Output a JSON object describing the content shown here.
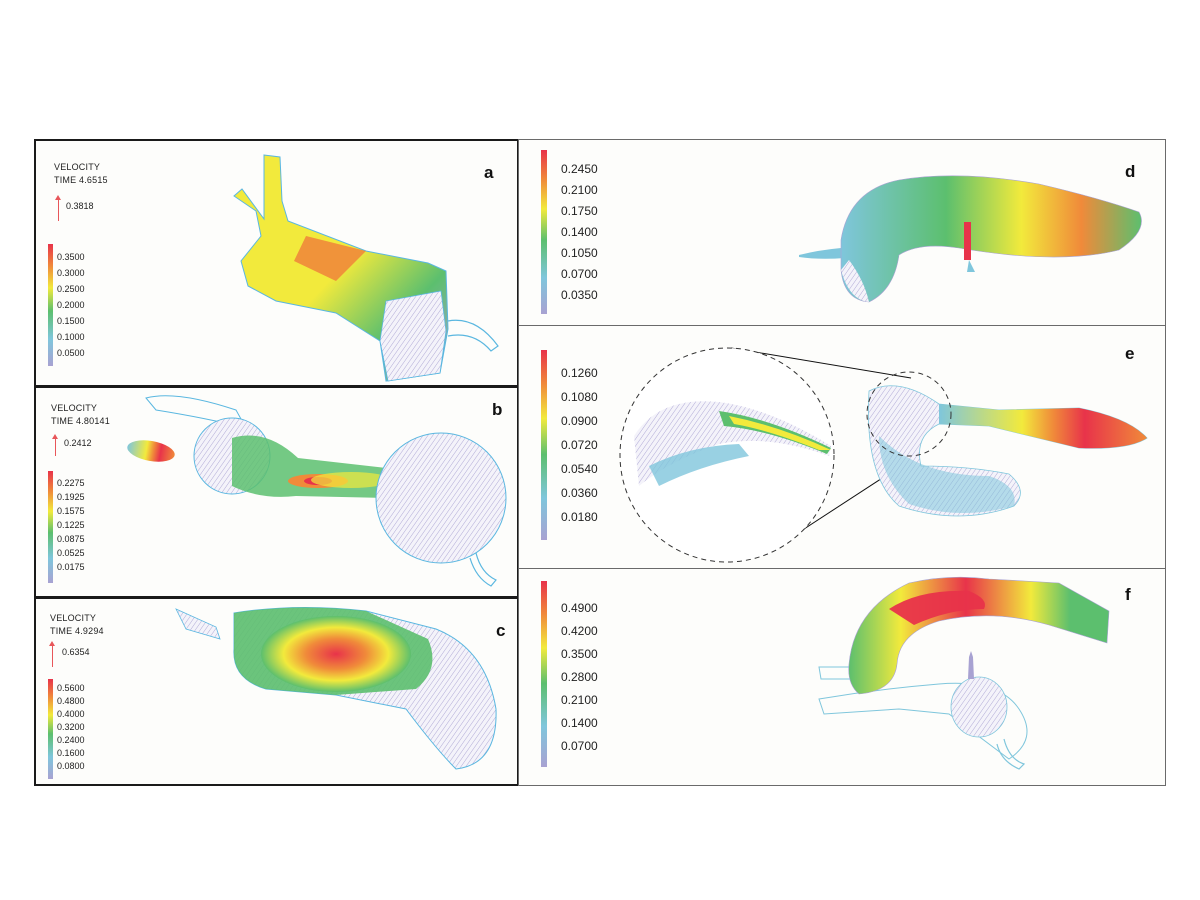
{
  "panels": {
    "a": {
      "letter": "a",
      "title": "VELOCITY",
      "time": "TIME 4.6515",
      "arrow_value": "0.3818",
      "colorbar_ticks": [
        "0.3500",
        "0.3000",
        "0.2500",
        "0.2000",
        "0.1500",
        "0.1000",
        "0.0500"
      ]
    },
    "b": {
      "letter": "b",
      "title": "VELOCITY",
      "time": "TIME 4.80141",
      "arrow_value": "0.2412",
      "colorbar_ticks": [
        "0.2275",
        "0.1925",
        "0.1575",
        "0.1225",
        "0.0875",
        "0.0525",
        "0.0175"
      ]
    },
    "c": {
      "letter": "c",
      "title": "VELOCITY",
      "time": "TIME 4.9294",
      "arrow_value": "0.6354",
      "colorbar_ticks": [
        "0.5600",
        "0.4800",
        "0.4000",
        "0.3200",
        "0.2400",
        "0.1600",
        "0.0800"
      ]
    },
    "d": {
      "letter": "d",
      "colorbar_ticks": [
        "0.2450",
        "0.2100",
        "0.1750",
        "0.1400",
        "0.1050",
        "0.0700",
        "0.0350"
      ]
    },
    "e": {
      "letter": "e",
      "colorbar_ticks": [
        "0.1260",
        "0.1080",
        "0.0900",
        "0.0720",
        "0.0540",
        "0.0360",
        "0.0180"
      ]
    },
    "f": {
      "letter": "f",
      "colorbar_ticks": [
        "0.4900",
        "0.4200",
        "0.3500",
        "0.2800",
        "0.2100",
        "0.1400",
        "0.0700"
      ]
    }
  },
  "colors": {
    "red": "#e8334a",
    "orange": "#f08a3a",
    "yellow": "#f2ea3c",
    "green": "#5cbf6e",
    "cyan": "#7fc6dc",
    "lavender": "#a8a2d2",
    "outline": "#5ab7e0"
  }
}
